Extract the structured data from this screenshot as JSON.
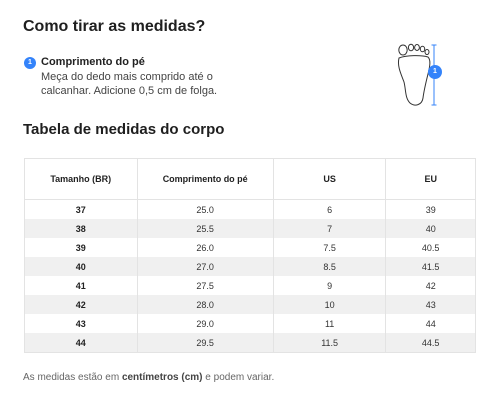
{
  "header": {
    "title": "Como tirar as medidas?"
  },
  "step": {
    "number": "1",
    "title": "Comprimento do pé",
    "description": "Meça do dedo mais comprido até o calcanhar. Adicione 0,5 cm de folga."
  },
  "illustration": {
    "badge": "1",
    "icon": "foot-outline-icon"
  },
  "table_title": "Tabela de medidas do corpo",
  "table": {
    "headers": [
      "Tamanho (BR)",
      "Comprimento do pé",
      "US",
      "EU"
    ],
    "rows": [
      [
        "37",
        "25.0",
        "6",
        "39"
      ],
      [
        "38",
        "25.5",
        "7",
        "40"
      ],
      [
        "39",
        "26.0",
        "7.5",
        "40.5"
      ],
      [
        "40",
        "27.0",
        "8.5",
        "41.5"
      ],
      [
        "41",
        "27.5",
        "9",
        "42"
      ],
      [
        "42",
        "28.0",
        "10",
        "43"
      ],
      [
        "43",
        "29.0",
        "11",
        "44"
      ],
      [
        "44",
        "29.5",
        "11.5",
        "44.5"
      ]
    ]
  },
  "footnote": {
    "before": "As medidas estão em ",
    "bold": "centímetros (cm)",
    "after": " e podem variar."
  },
  "colors": {
    "accent": "#3483fa",
    "row_alt": "#f0f0f0"
  }
}
